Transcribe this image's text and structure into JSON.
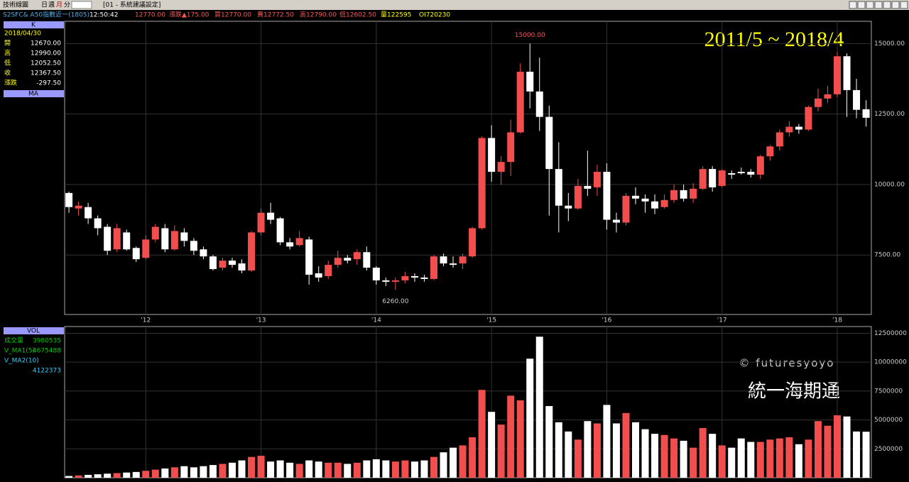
{
  "header": {
    "title": "技術線圖",
    "periods": [
      "日",
      "週",
      "月",
      "分"
    ],
    "setting": "[01 - 系統建議設定]"
  },
  "quote": {
    "symbol": "S2SFC& A50指數近一(1805)",
    "time": "12:50:42",
    "last": "12770.00",
    "change": "漲跌▲175.00",
    "bid": "買12770.00",
    "ask": "賣12772.50",
    "high": "高12790.00",
    "low": "低12602.50",
    "volume": "量122595",
    "oi": "OI720230"
  },
  "info": {
    "k": "K",
    "date": "2018/04/30",
    "rows": [
      {
        "label": "開",
        "value": "12670.00"
      },
      {
        "label": "高",
        "value": "12990.00"
      },
      {
        "label": "低",
        "value": "12052.50"
      },
      {
        "label": "收",
        "value": "12367.50"
      },
      {
        "label": "漲跌",
        "value": "-297.50"
      }
    ],
    "ma": "MA",
    "vol": "VOL",
    "vol_rows": [
      {
        "label": "成交量",
        "value": "3980535"
      },
      {
        "label": "V_MA1(5)",
        "value": "4675488"
      },
      {
        "label": "V_MA2(10)",
        "value": "4122373"
      }
    ]
  },
  "overlay": {
    "period": "2011/5 ~ 2018/4",
    "watermark": "© futuresyoyo",
    "brand": "統一海期通"
  },
  "chart_data": [
    {
      "type": "candlestick",
      "up_color": "#f24e4e",
      "down_color": "#ffffff",
      "grid": true,
      "max_label": "15000.00",
      "min_label": "6260.00",
      "ylim": [
        5390,
        15790
      ],
      "yticks": [
        {
          "value": 7500,
          "label": "7500.00"
        },
        {
          "value": 10000,
          "label": "10000.00"
        },
        {
          "value": 12500,
          "label": "12500.00"
        },
        {
          "value": 15000,
          "label": "15000.00"
        }
      ],
      "xticks": [
        {
          "value": 8,
          "label": "'12"
        },
        {
          "value": 20,
          "label": "'13"
        },
        {
          "value": 32,
          "label": "'14"
        },
        {
          "value": 44,
          "label": "'15"
        },
        {
          "value": 56,
          "label": "'16"
        },
        {
          "value": 68,
          "label": "'17"
        },
        {
          "value": 80,
          "label": "'18"
        }
      ],
      "open": [
        9700,
        9150,
        9200,
        8800,
        8500,
        7700,
        8300,
        7750,
        7400,
        8050,
        8450,
        7700,
        8300,
        8000,
        7700,
        7450,
        7050,
        7300,
        7200,
        6950,
        8300,
        9000,
        8800,
        7950,
        7850,
        8050,
        6850,
        6750,
        7150,
        7400,
        7350,
        7600,
        7050,
        6600,
        6550,
        6600,
        6750,
        6700,
        6650,
        7450,
        7200,
        7200,
        7450,
        8450,
        11650,
        10450,
        10800,
        11850,
        14000,
        13300,
        12400,
        10550,
        9250,
        9150,
        9950,
        9900,
        10450,
        8750,
        8650,
        9600,
        9500,
        9400,
        9200,
        9450,
        9800,
        9500,
        9850,
        10550,
        9950,
        10400,
        10450,
        10450,
        10350,
        11000,
        11350,
        11850,
        12050,
        11950,
        12750,
        13050,
        13200,
        14550,
        13350,
        12670
      ],
      "high": [
        9750,
        9400,
        9350,
        8900,
        8600,
        8600,
        8400,
        7800,
        8200,
        8600,
        8600,
        8550,
        8450,
        8100,
        7800,
        7500,
        7400,
        7400,
        7350,
        8350,
        9150,
        9350,
        8850,
        8100,
        8350,
        8150,
        7100,
        7300,
        7650,
        7500,
        7700,
        7800,
        7100,
        6700,
        6700,
        6900,
        6850,
        6800,
        7500,
        7550,
        7450,
        7550,
        8500,
        11700,
        12100,
        11000,
        12300,
        14300,
        15000,
        14500,
        12800,
        11500,
        9700,
        10200,
        11200,
        10700,
        10750,
        9000,
        9700,
        9900,
        9650,
        9650,
        9650,
        10000,
        10000,
        10050,
        10650,
        10650,
        10550,
        10500,
        10600,
        10550,
        11050,
        11400,
        11950,
        12250,
        12150,
        12800,
        13400,
        13500,
        14700,
        14650,
        13750,
        12990
      ],
      "low": [
        9000,
        8900,
        8600,
        8200,
        7500,
        7600,
        7650,
        7250,
        7350,
        7950,
        7600,
        7650,
        7800,
        7500,
        7350,
        6950,
        6950,
        7050,
        6850,
        6900,
        8200,
        8600,
        7850,
        7700,
        7800,
        6450,
        6550,
        6650,
        7050,
        7200,
        7150,
        6950,
        6450,
        6400,
        6260,
        6500,
        6550,
        6550,
        6600,
        7100,
        7050,
        7000,
        7400,
        8400,
        10100,
        10000,
        10300,
        11800,
        12700,
        11900,
        8900,
        8300,
        8700,
        9100,
        9600,
        9600,
        8400,
        8300,
        8550,
        9300,
        9000,
        8950,
        9150,
        9350,
        9400,
        9350,
        9800,
        9750,
        9900,
        10200,
        10350,
        10250,
        10200,
        10850,
        11200,
        11700,
        11800,
        11900,
        12600,
        12900,
        13100,
        12400,
        12350,
        12052.5
      ],
      "close": [
        9200,
        9250,
        8800,
        8450,
        7650,
        8450,
        7700,
        7350,
        8050,
        8500,
        7700,
        8350,
        8000,
        7650,
        7450,
        7000,
        7300,
        7150,
        6950,
        8300,
        9000,
        8750,
        7950,
        7800,
        8100,
        6800,
        6700,
        7150,
        7400,
        7300,
        7600,
        7050,
        6600,
        6550,
        6600,
        6750,
        6700,
        6650,
        7450,
        7200,
        7150,
        7450,
        8450,
        11650,
        10450,
        10800,
        11850,
        14000,
        13300,
        12400,
        10550,
        9250,
        9150,
        9950,
        9850,
        10450,
        8750,
        8650,
        9600,
        9500,
        9400,
        9150,
        9450,
        9800,
        9500,
        9850,
        10550,
        9900,
        10500,
        10350,
        10400,
        10350,
        11000,
        11350,
        11850,
        12050,
        11950,
        12750,
        13050,
        13200,
        14550,
        13350,
        12650,
        12367.5
      ]
    },
    {
      "type": "bar",
      "grid": true,
      "ylim": [
        0,
        13080000
      ],
      "yticks": [
        2500000,
        5000000,
        7500000,
        10000000,
        12500000
      ],
      "values": [
        150000,
        200000,
        250000,
        300000,
        350000,
        400000,
        450000,
        500000,
        600000,
        700000,
        800000,
        900000,
        1000000,
        900000,
        1000000,
        1100000,
        1200000,
        1300000,
        1500000,
        1800000,
        1900000,
        1400000,
        1500000,
        1300000,
        1200000,
        1500000,
        1400000,
        1300000,
        1300000,
        1200000,
        1300000,
        1500000,
        1600000,
        1500000,
        1400000,
        1500000,
        1400000,
        1500000,
        1800000,
        2200000,
        2600000,
        2800000,
        3500000,
        7600000,
        5700000,
        4600000,
        7100000,
        6700000,
        10300000,
        12200000,
        6200000,
        4800000,
        4000000,
        3300000,
        4900000,
        4700000,
        6300000,
        4700000,
        5600000,
        4800000,
        4200000,
        3800000,
        3700000,
        3400000,
        3200000,
        2600000,
        4300000,
        3800000,
        2800000,
        2600000,
        3400000,
        3100000,
        3100000,
        3300000,
        3400000,
        3500000,
        2900000,
        3300000,
        4900000,
        4500000,
        5400000,
        5300000,
        4000000,
        3980535
      ]
    }
  ]
}
